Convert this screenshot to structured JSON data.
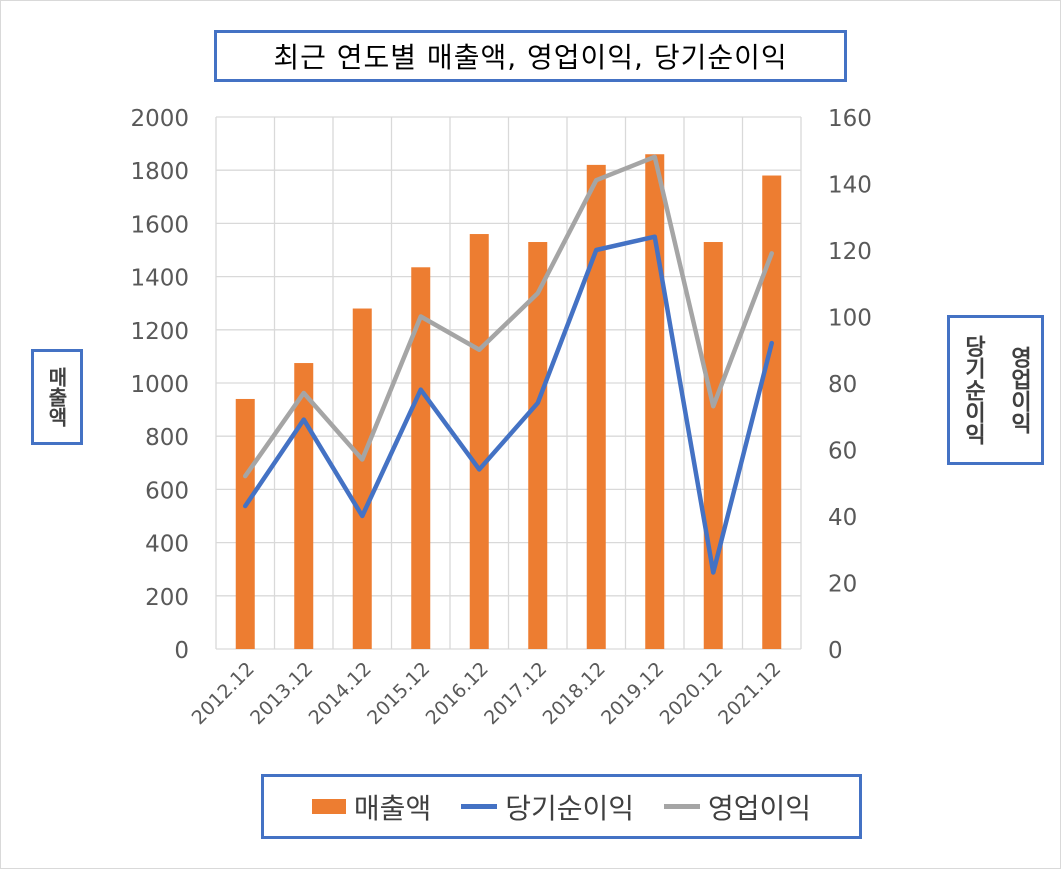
{
  "chart_data": {
    "type": "bar",
    "title": "최근 연도별 매출액, 영업이익, 당기순이익",
    "ylabel": "매출액",
    "ylabel_right_lines": [
      "당기순이익",
      "영업이익"
    ],
    "categories": [
      "2012.12",
      "2013.12",
      "2014.12",
      "2015.12",
      "2016.12",
      "2017.12",
      "2018.12",
      "2019.12",
      "2020.12",
      "2021.12"
    ],
    "y_left": {
      "ylim": [
        0,
        2000
      ],
      "ticks": [
        0,
        200,
        400,
        600,
        800,
        1000,
        1200,
        1400,
        1600,
        1800,
        2000
      ]
    },
    "y_right": {
      "ylim": [
        0,
        160
      ],
      "ticks": [
        0,
        20,
        40,
        60,
        80,
        100,
        120,
        140,
        160
      ]
    },
    "series": [
      {
        "name": "매출액",
        "type": "bar",
        "axis": "left",
        "color": "#ed7d31",
        "values": [
          940,
          1075,
          1280,
          1435,
          1560,
          1530,
          1820,
          1860,
          1530,
          1780
        ]
      },
      {
        "name": "당기순이익",
        "type": "line",
        "axis": "right",
        "color": "#4472c4",
        "values": [
          43,
          69,
          40,
          78,
          54,
          74,
          120,
          124,
          23,
          92
        ]
      },
      {
        "name": "영업이익",
        "type": "line",
        "axis": "right",
        "color": "#a5a5a5",
        "values": [
          52,
          77,
          57,
          100,
          90,
          107,
          141,
          148,
          73,
          119
        ]
      }
    ],
    "grid": true,
    "legend_position": "bottom"
  }
}
